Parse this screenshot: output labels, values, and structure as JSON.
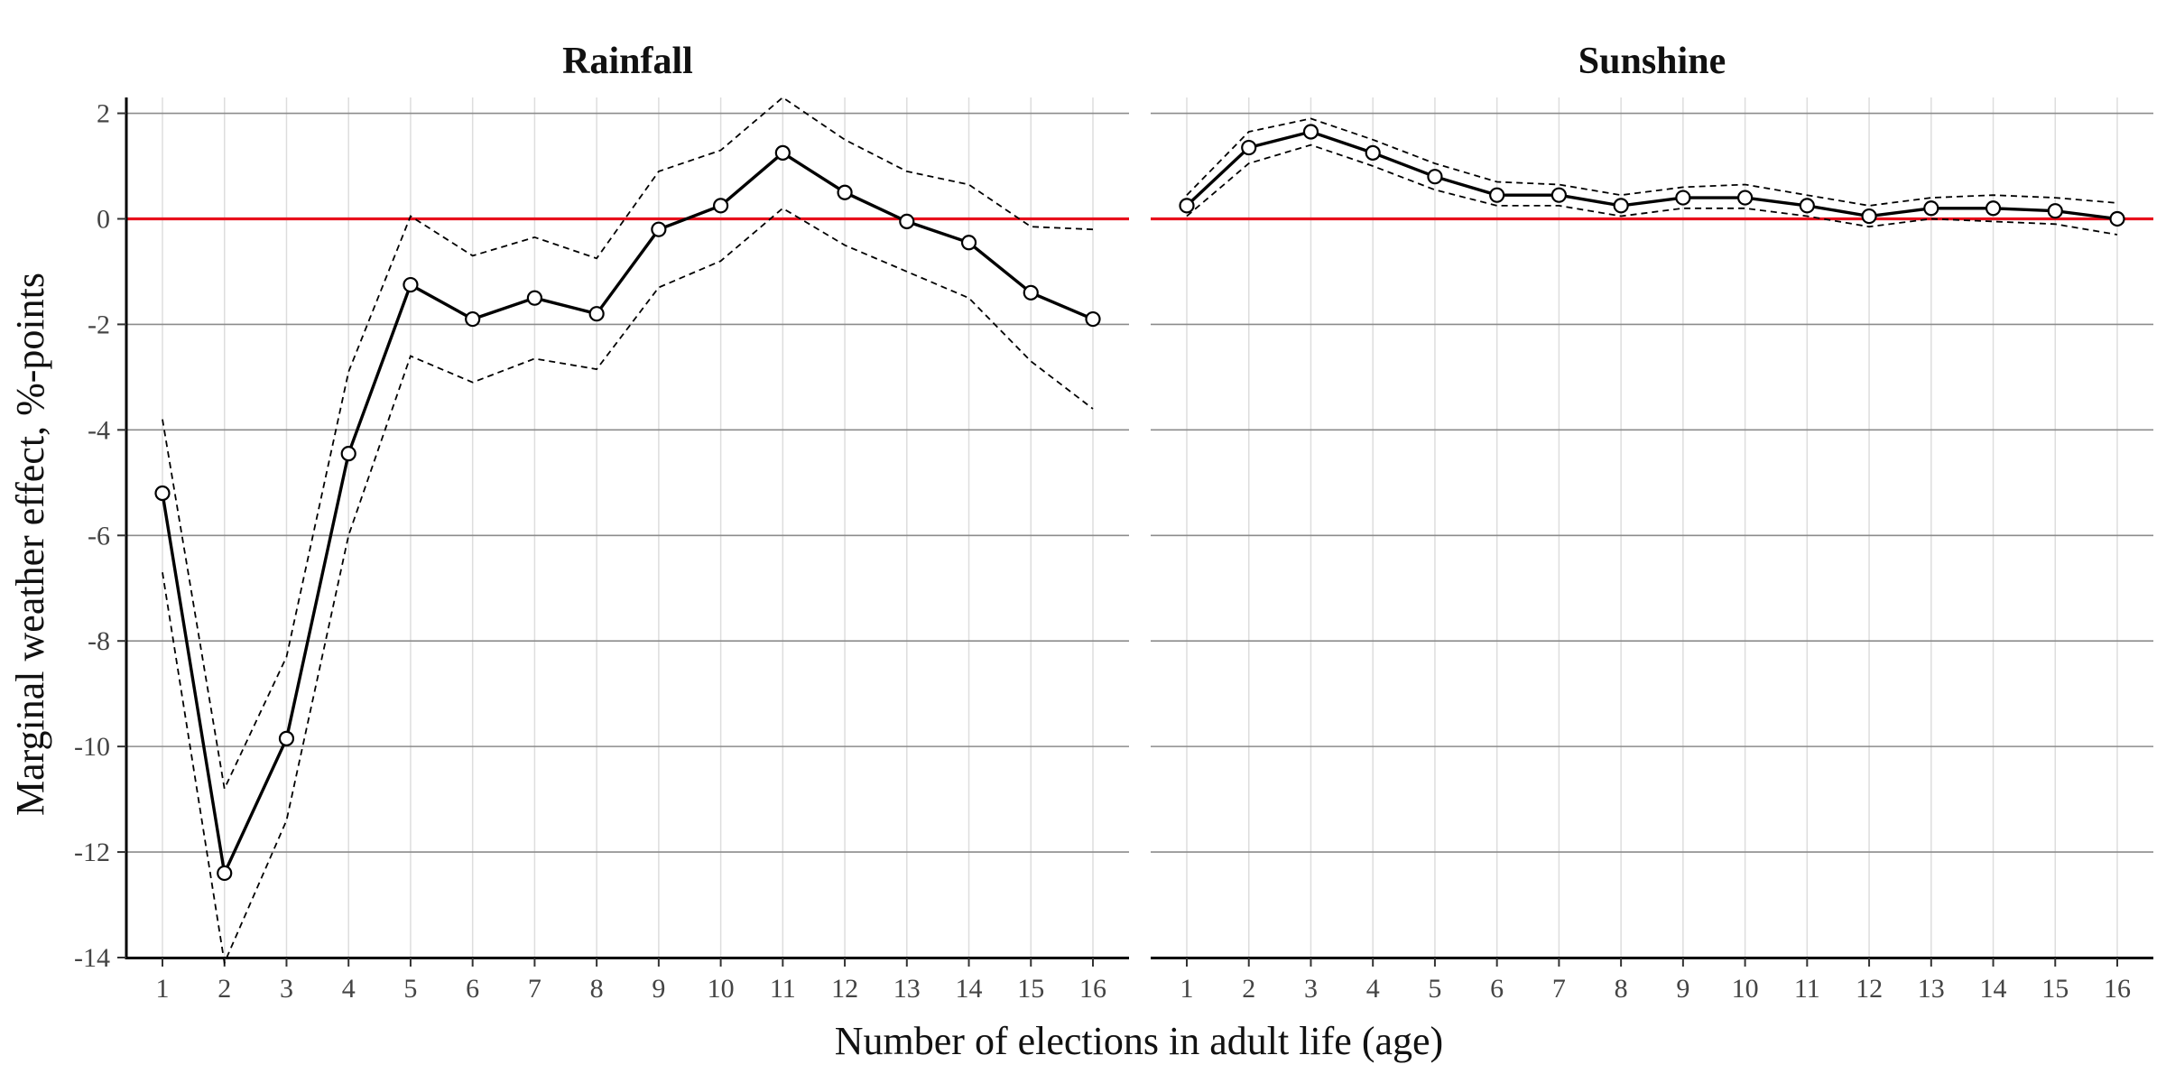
{
  "chart_data": {
    "type": "line",
    "xlabel": "Number of elections in adult life (age)",
    "ylabel": "Marginal weather effect, %-points",
    "x": [
      1,
      2,
      3,
      4,
      5,
      6,
      7,
      8,
      9,
      10,
      11,
      12,
      13,
      14,
      15,
      16
    ],
    "ylim": [
      -14,
      2.3
    ],
    "yticks": [
      2,
      0,
      -2,
      -4,
      -6,
      -8,
      -10,
      -12,
      -14
    ],
    "ytick_labels": [
      "2",
      "0",
      "-2",
      "-4",
      "-6",
      "-8",
      "-10",
      "-12",
      "-14"
    ],
    "xtick_labels": [
      "1",
      "2",
      "3",
      "4",
      "5",
      "6",
      "7",
      "8",
      "9",
      "10",
      "11",
      "12",
      "13",
      "14",
      "15",
      "16"
    ],
    "reference_line": {
      "y": 0,
      "color": "#e8101c"
    },
    "grid": true,
    "colors": {
      "estimate": "#000000",
      "ci": "#000000",
      "gridMajor": "#8c8c8c",
      "gridMinor": "#dddddd",
      "axis": "#000000"
    },
    "panels": [
      {
        "title": "Rainfall",
        "estimate": [
          -5.2,
          -12.4,
          -9.85,
          -4.45,
          -1.25,
          -1.9,
          -1.5,
          -1.8,
          -0.2,
          0.25,
          1.25,
          0.5,
          -0.05,
          -0.45,
          -1.4,
          -1.9
        ],
        "upper": [
          -3.8,
          -10.8,
          -8.3,
          -2.9,
          0.05,
          -0.7,
          -0.35,
          -0.75,
          0.9,
          1.3,
          2.3,
          1.5,
          0.9,
          0.65,
          -0.15,
          -0.2
        ],
        "lower": [
          -6.7,
          -14.1,
          -11.4,
          -6.0,
          -2.6,
          -3.1,
          -2.65,
          -2.85,
          -1.3,
          -0.8,
          0.2,
          -0.5,
          -1.0,
          -1.5,
          -2.7,
          -3.6
        ]
      },
      {
        "title": "Sunshine",
        "estimate": [
          0.25,
          1.35,
          1.65,
          1.25,
          0.8,
          0.45,
          0.45,
          0.25,
          0.4,
          0.4,
          0.25,
          0.05,
          0.2,
          0.2,
          0.15,
          0.0
        ],
        "upper": [
          0.45,
          1.65,
          1.9,
          1.5,
          1.05,
          0.7,
          0.65,
          0.45,
          0.6,
          0.65,
          0.45,
          0.25,
          0.4,
          0.45,
          0.4,
          0.3
        ],
        "lower": [
          0.05,
          1.05,
          1.4,
          1.0,
          0.55,
          0.25,
          0.25,
          0.05,
          0.2,
          0.2,
          0.05,
          -0.15,
          0.0,
          -0.05,
          -0.1,
          -0.3
        ]
      }
    ]
  }
}
